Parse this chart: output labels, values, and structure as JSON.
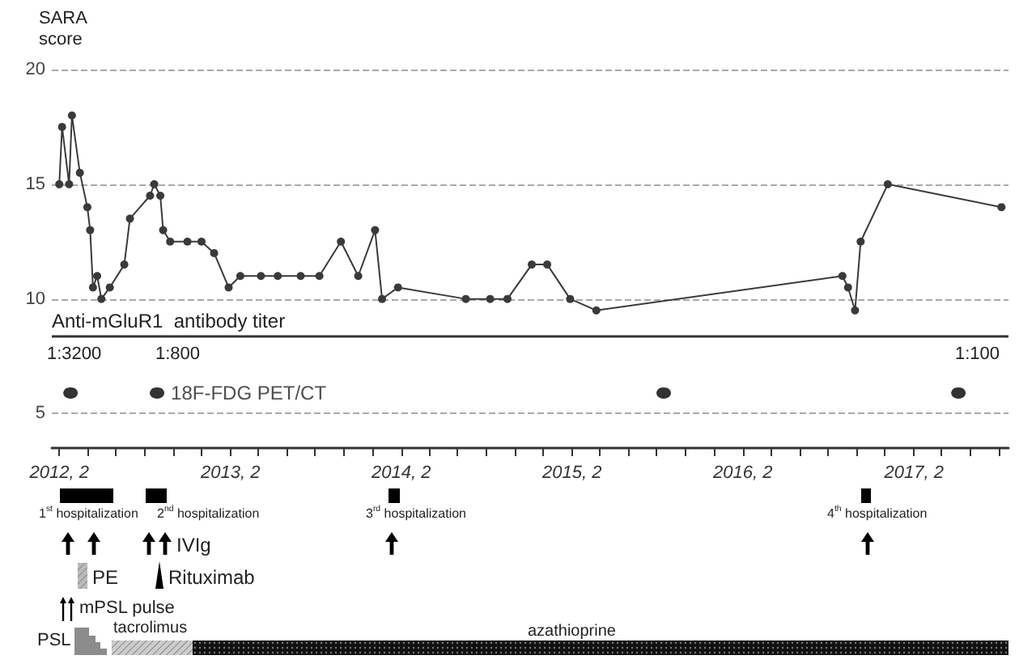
{
  "chart_data": {
    "type": "line",
    "ylabel": "SARA score",
    "xlim": [
      "2012-01-16",
      "2017-08-22"
    ],
    "ylim": [
      3.5,
      20
    ],
    "yticks": [
      5,
      10,
      15,
      20
    ],
    "grid": "y",
    "marker": "circle",
    "xticks": [
      {
        "value": "2012-02",
        "label": "2012, 2"
      },
      {
        "value": "2012-04",
        "label": null
      },
      {
        "value": "2012-06",
        "label": null
      },
      {
        "value": "2012-08",
        "label": null
      },
      {
        "value": "2012-10",
        "label": null
      },
      {
        "value": "2012-12",
        "label": null
      },
      {
        "value": "2013-02",
        "label": "2013, 2"
      },
      {
        "value": "2013-04",
        "label": null
      },
      {
        "value": "2013-06",
        "label": null
      },
      {
        "value": "2013-08",
        "label": null
      },
      {
        "value": "2013-10",
        "label": null
      },
      {
        "value": "2013-12",
        "label": null
      },
      {
        "value": "2014-02",
        "label": "2014, 2"
      },
      {
        "value": "2014-04",
        "label": null
      },
      {
        "value": "2014-06",
        "label": null
      },
      {
        "value": "2014-08",
        "label": null
      },
      {
        "value": "2014-10",
        "label": null
      },
      {
        "value": "2014-12",
        "label": null
      },
      {
        "value": "2015-02",
        "label": "2015, 2"
      },
      {
        "value": "2015-04",
        "label": null
      },
      {
        "value": "2015-06",
        "label": null
      },
      {
        "value": "2015-08",
        "label": null
      },
      {
        "value": "2015-10",
        "label": null
      },
      {
        "value": "2015-12",
        "label": null
      },
      {
        "value": "2016-02",
        "label": "2016, 2"
      },
      {
        "value": "2016-04",
        "label": null
      },
      {
        "value": "2016-06",
        "label": null
      },
      {
        "value": "2016-08",
        "label": null
      },
      {
        "value": "2016-10",
        "label": null
      },
      {
        "value": "2016-12",
        "label": null
      },
      {
        "value": "2017-02",
        "label": "2017, 2"
      },
      {
        "value": "2017-04",
        "label": null
      },
      {
        "value": "2017-06",
        "label": null
      },
      {
        "value": "2017-08",
        "label": null
      }
    ],
    "series": [
      {
        "color": "#3a3a3a",
        "x": [
          "2012-02-01",
          "2012-02-07",
          "2012-02-22",
          "2012-02-28",
          "2012-03-16",
          "2012-04-01",
          "2012-04-07",
          "2012-04-13",
          "2012-04-22",
          "2012-05-01",
          "2012-05-19",
          "2012-06-19",
          "2012-07-01",
          "2012-08-13",
          "2012-08-22",
          "2012-09-04",
          "2012-09-10",
          "2012-09-25",
          "2012-11-01",
          "2012-12-01",
          "2012-12-28",
          "2013-01-28",
          "2013-02-22",
          "2013-04-07",
          "2013-05-13",
          "2013-07-01",
          "2013-08-10",
          "2013-09-25",
          "2013-11-01",
          "2013-12-07",
          "2013-12-22",
          "2014-01-25",
          "2014-06-19",
          "2014-08-10",
          "2014-09-16",
          "2014-11-07",
          "2014-12-10",
          "2015-01-28",
          "2015-03-25",
          "2016-09-01",
          "2016-09-13",
          "2016-09-28",
          "2016-10-10",
          "2016-12-07",
          "2017-08-07"
        ],
        "values": [
          15,
          17.5,
          15,
          18,
          15.5,
          14,
          13,
          10.5,
          11,
          10,
          10.5,
          11.5,
          13.5,
          14.5,
          15,
          14.5,
          13,
          12.5,
          12.5,
          12.5,
          12,
          10.5,
          11,
          11,
          11,
          11,
          11,
          12.5,
          11,
          13,
          10,
          10.5,
          10,
          10,
          10,
          11.5,
          11.5,
          10,
          9.5,
          11,
          10.5,
          9.5,
          12.5,
          15,
          14
        ]
      },
      {
        "type": "scatter",
        "name": "18F-FDG PET/CT",
        "color": "#000000",
        "x": [
          "2012-02-25",
          "2012-08-28",
          "2015-08-16",
          "2017-05-07"
        ],
        "values": [
          5.9,
          5.9,
          5.9,
          5.9
        ]
      }
    ],
    "ref_lines": [
      {
        "axis": "y",
        "value": 8.4,
        "label": "Anti-mGluR1  antibody titer",
        "color": "#333333"
      }
    ],
    "annotations": [
      "1:3200",
      "1:800",
      "1:100",
      "1$^{st}$ hospitalization",
      "2$^{nd}$ hospitalization",
      "3$^{rd}$ hospitalization",
      "4$^{th}$ hospitalization",
      "IVIg",
      "PE",
      "Rituximab",
      "mPSL pulse",
      "PSL",
      "tacrolimus",
      "azathioprine"
    ]
  }
}
